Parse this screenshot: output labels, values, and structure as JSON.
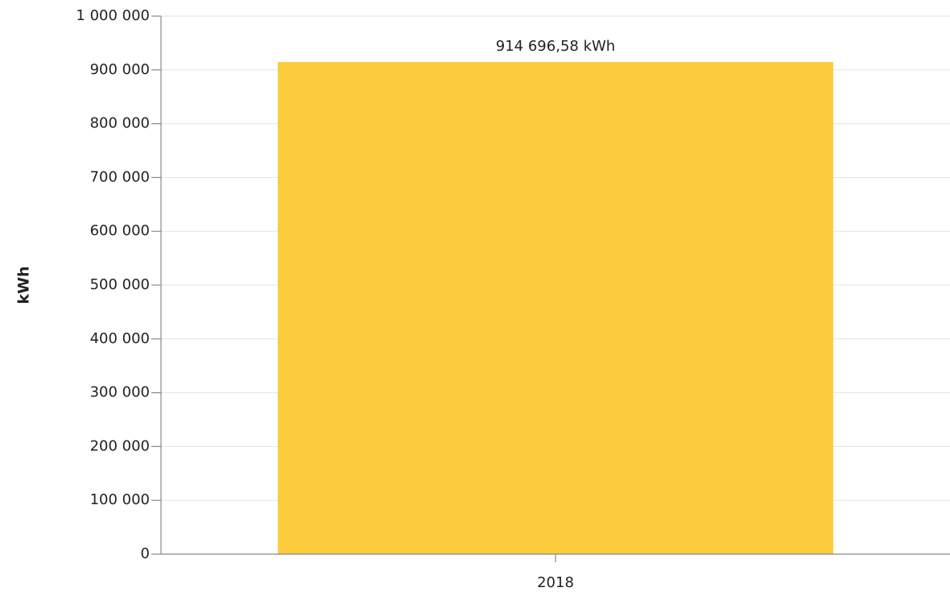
{
  "chart_data": {
    "type": "bar",
    "y_label": "kWh",
    "categories": [
      "2018"
    ],
    "values": [
      914696.58
    ],
    "value_labels": [
      "914 696,58 kWh"
    ],
    "color": "#fdc933",
    "ylim": [
      0,
      1000000
    ],
    "yticks": [
      0,
      {
        "value": 100000,
        "label": "100 000"
      },
      {
        "value": 200000,
        "label": "200 000"
      },
      {
        "value": 300000,
        "label": "300 000"
      },
      {
        "value": 400000,
        "label": "400 000"
      },
      {
        "value": 500000,
        "label": "500 000"
      },
      {
        "value": 600000,
        "label": "600 000"
      },
      {
        "value": 700000,
        "label": "700 000"
      },
      {
        "value": 800000,
        "label": "800 000"
      },
      {
        "value": 900000,
        "label": "900 000"
      },
      {
        "value": 1000000,
        "label": "1 000 000"
      }
    ],
    "grid": true
  }
}
